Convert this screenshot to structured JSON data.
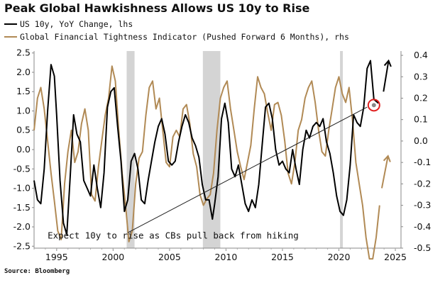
{
  "title": "Peak Global Hawkishness Allows US 10y to Rise",
  "legend": [
    {
      "label": "US 10y, YoY Change, lhs",
      "color": "#000000"
    },
    {
      "label": "Global Financial Tightness Indicator (Pushed Forward 6 Months), rhs",
      "color": "#b18a55"
    }
  ],
  "annotation": "Expect 10y to rise as CBs pull back from hiking",
  "source": "Source: Bloomberg",
  "colors": {
    "us10y": "#000000",
    "gfti": "#b18a55",
    "recession_band": "#d4d4d4",
    "highlight_circle": "#e02020"
  },
  "chart_data": {
    "type": "line",
    "x_range": [
      1993,
      2025.5
    ],
    "x_ticks": [
      "1995",
      "2000",
      "2005",
      "2010",
      "2015",
      "2020",
      "2025"
    ],
    "y_left": {
      "range": [
        -2.55,
        2.55
      ],
      "ticks": [
        "2.5",
        "2.0",
        "1.5",
        "1.0",
        "0.5",
        "0.0",
        "-0.5",
        "-1.0",
        "-1.5",
        "-2.0",
        "-2.5"
      ]
    },
    "y_right": {
      "range": [
        -0.5,
        0.42
      ],
      "ticks": [
        "0.4",
        "0.3",
        "0.2",
        "0.1",
        "0.0",
        "-0.1",
        "-0.2",
        "-0.3",
        "-0.4",
        "-0.5"
      ]
    },
    "shaded_periods": [
      [
        2001.2,
        2001.9
      ],
      [
        2007.95,
        2009.5
      ],
      [
        2020.1,
        2020.35
      ]
    ],
    "series": [
      {
        "name": "US 10y, YoY Change, lhs",
        "axis": "left",
        "x": [
          1993.0,
          1993.3,
          1993.6,
          1993.9,
          1994.2,
          1994.5,
          1994.8,
          1995.0,
          1995.3,
          1995.6,
          1995.9,
          1996.2,
          1996.5,
          1996.8,
          1997.1,
          1997.4,
          1997.7,
          1998.0,
          1998.3,
          1998.6,
          1998.9,
          1999.2,
          1999.5,
          1999.8,
          2000.1,
          2000.4,
          2000.7,
          2001.0,
          2001.3,
          2001.6,
          2001.9,
          2002.2,
          2002.5,
          2002.8,
          2003.1,
          2003.4,
          2003.7,
          2004.0,
          2004.3,
          2004.6,
          2004.9,
          2005.2,
          2005.5,
          2005.8,
          2006.1,
          2006.4,
          2006.7,
          2007.0,
          2007.3,
          2007.6,
          2007.9,
          2008.2,
          2008.5,
          2008.8,
          2009.0,
          2009.3,
          2009.6,
          2009.9,
          2010.2,
          2010.5,
          2010.8,
          2011.1,
          2011.4,
          2011.7,
          2012.0,
          2012.3,
          2012.6,
          2012.9,
          2013.2,
          2013.5,
          2013.8,
          2014.1,
          2014.4,
          2014.7,
          2015.0,
          2015.3,
          2015.6,
          2015.9,
          2016.2,
          2016.5,
          2016.8,
          2017.1,
          2017.4,
          2017.7,
          2018.0,
          2018.3,
          2018.6,
          2018.9,
          2019.2,
          2019.5,
          2019.8,
          2020.1,
          2020.4,
          2020.7,
          2021.0,
          2021.3,
          2021.6,
          2021.9,
          2022.2,
          2022.5,
          2022.8,
          2023.1,
          2023.5
        ],
        "y": [
          -0.8,
          -1.3,
          -1.4,
          -0.5,
          1.0,
          2.2,
          1.9,
          0.9,
          -0.8,
          -1.9,
          -2.2,
          -0.7,
          0.9,
          0.4,
          0.2,
          -0.8,
          -1.0,
          -1.2,
          -0.4,
          -1.0,
          -1.5,
          -0.6,
          1.1,
          1.5,
          1.6,
          0.6,
          -0.3,
          -1.6,
          -1.3,
          -0.3,
          -0.1,
          -0.5,
          -1.3,
          -1.4,
          -0.8,
          -0.3,
          0.2,
          0.6,
          0.8,
          0.4,
          -0.3,
          -0.4,
          -0.3,
          0.2,
          0.6,
          0.9,
          0.7,
          0.3,
          0.1,
          -0.2,
          -0.9,
          -1.3,
          -1.3,
          -1.8,
          -1.4,
          -0.7,
          0.8,
          1.2,
          0.7,
          -0.5,
          -0.7,
          -0.4,
          -0.9,
          -1.4,
          -1.6,
          -1.3,
          -1.5,
          -0.9,
          0.1,
          1.1,
          1.2,
          0.8,
          0.0,
          -0.4,
          -0.3,
          -0.5,
          -0.6,
          0.0,
          -0.5,
          -0.9,
          0.0,
          0.5,
          0.3,
          0.6,
          0.7,
          0.6,
          0.8,
          0.2,
          -0.1,
          -0.6,
          -1.2,
          -1.6,
          -1.7,
          -1.3,
          -0.4,
          0.9,
          0.7,
          0.6,
          1.1,
          2.1,
          2.3,
          1.3,
          1.2
        ]
      },
      {
        "name": "Global Financial Tightness Indicator (Pushed Forward 6 Months), rhs",
        "axis": "right",
        "x": [
          1993.0,
          1993.3,
          1993.6,
          1993.9,
          1994.2,
          1994.5,
          1994.8,
          1995.1,
          1995.4,
          1995.7,
          1996.0,
          1996.3,
          1996.6,
          1996.9,
          1997.2,
          1997.5,
          1997.8,
          1998.1,
          1998.4,
          1998.7,
          1999.0,
          1999.3,
          1999.6,
          1999.9,
          2000.2,
          2000.5,
          2000.8,
          2001.1,
          2001.4,
          2001.7,
          2002.0,
          2002.3,
          2002.6,
          2002.9,
          2003.2,
          2003.5,
          2003.8,
          2004.1,
          2004.4,
          2004.7,
          2005.0,
          2005.3,
          2005.6,
          2005.9,
          2006.2,
          2006.5,
          2006.8,
          2007.1,
          2007.4,
          2007.7,
          2008.0,
          2008.3,
          2008.6,
          2008.9,
          2009.2,
          2009.5,
          2009.8,
          2010.1,
          2010.4,
          2010.7,
          2011.0,
          2011.3,
          2011.6,
          2011.9,
          2012.2,
          2012.5,
          2012.8,
          2013.1,
          2013.4,
          2013.7,
          2014.0,
          2014.3,
          2014.6,
          2014.9,
          2015.2,
          2015.5,
          2015.8,
          2016.1,
          2016.4,
          2016.7,
          2017.0,
          2017.3,
          2017.6,
          2017.9,
          2018.2,
          2018.5,
          2018.8,
          2019.1,
          2019.4,
          2019.7,
          2020.0,
          2020.3,
          2020.6,
          2020.9,
          2021.2,
          2021.5,
          2021.8,
          2022.1,
          2022.4,
          2022.7,
          2023.0,
          2023.3,
          2023.6
        ],
        "y": [
          0.05,
          0.2,
          0.25,
          0.15,
          0.0,
          -0.15,
          -0.28,
          -0.42,
          -0.46,
          -0.2,
          -0.05,
          0.05,
          -0.1,
          -0.05,
          0.08,
          0.15,
          0.05,
          -0.25,
          -0.28,
          -0.12,
          0.0,
          0.12,
          0.2,
          0.35,
          0.28,
          0.05,
          -0.15,
          -0.3,
          -0.47,
          -0.42,
          -0.2,
          -0.08,
          -0.05,
          0.12,
          0.25,
          0.28,
          0.15,
          0.2,
          0.05,
          -0.1,
          -0.12,
          0.02,
          0.05,
          0.02,
          0.15,
          0.17,
          0.08,
          -0.06,
          -0.12,
          -0.25,
          -0.3,
          -0.27,
          -0.25,
          -0.15,
          0.05,
          0.2,
          0.25,
          0.28,
          0.15,
          0.05,
          -0.05,
          -0.12,
          -0.18,
          -0.1,
          -0.02,
          0.15,
          0.3,
          0.25,
          0.22,
          0.13,
          0.05,
          0.17,
          0.18,
          0.12,
          0.0,
          -0.15,
          -0.2,
          -0.1,
          0.05,
          0.1,
          0.2,
          0.25,
          0.28,
          0.18,
          0.05,
          -0.05,
          -0.07,
          0.05,
          0.15,
          0.25,
          0.3,
          0.22,
          0.18,
          0.25,
          0.1,
          -0.1,
          -0.2,
          -0.3,
          -0.45,
          -0.55,
          -0.55,
          -0.45,
          -0.3
        ]
      }
    ],
    "projections": [
      {
        "series": "US 10y, YoY Change, lhs",
        "x": [
          2023.95,
          2024.4
        ],
        "y": [
          1.5,
          2.3
        ],
        "arrow": true
      },
      {
        "series": "Global Financial Tightness Indicator (Pushed Forward 6 Months), rhs",
        "x": [
          2023.8,
          2024.35
        ],
        "y": [
          -0.22,
          -0.07
        ],
        "arrow": true
      }
    ],
    "trend_line": {
      "x": [
        2001.3,
        2022.5
      ],
      "y": [
        -2.15,
        1.1
      ]
    },
    "highlight_point": {
      "x": 2023.1,
      "y": 1.15
    },
    "grid": false,
    "legend_position": "top-left"
  }
}
